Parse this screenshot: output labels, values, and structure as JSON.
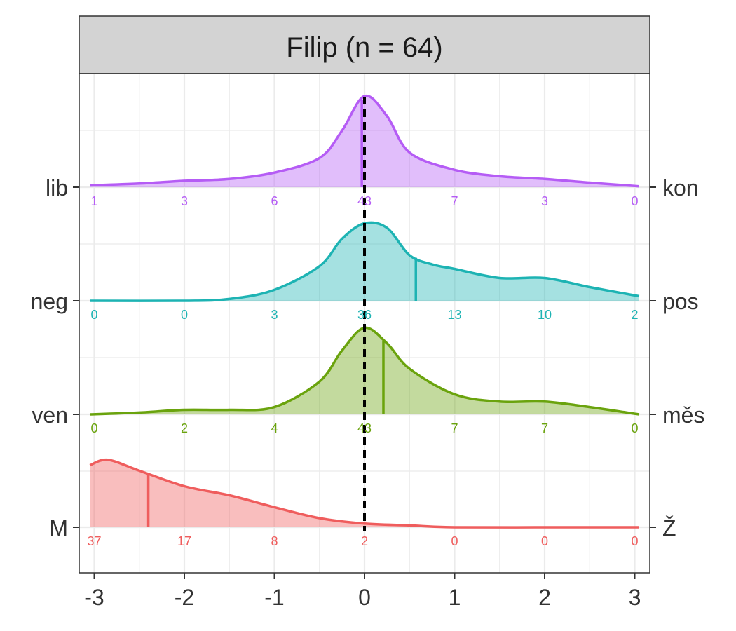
{
  "panel": {
    "title": "Filip (n = 64)"
  },
  "colors": {
    "lib_kon": "#b55cf5",
    "neg_pos": "#1db3b3",
    "ven_mes": "#6aa30d",
    "m_z": "#ef5d5d"
  },
  "chart_data": {
    "type": "ridgeline",
    "title": "Filip (n = 64)",
    "xlabel": "",
    "ylabel": "",
    "xlim": [
      -3.1,
      3.1
    ],
    "x_ticks": [
      -3,
      -2,
      -1,
      0,
      1,
      2,
      3
    ],
    "x_tick_labels": [
      "-3",
      "-2",
      "-1",
      "0",
      "1",
      "2",
      "3"
    ],
    "grid": true,
    "reference_line": {
      "x": 0,
      "style": "dashed"
    },
    "count_positions": [
      -3,
      -2,
      -1,
      0,
      1,
      2,
      3
    ],
    "series": [
      {
        "left_label": "lib",
        "right_label": "kon",
        "color": "#b55cf5",
        "mean": -0.03,
        "counts": [
          1,
          3,
          6,
          43,
          7,
          3,
          0
        ],
        "density": [
          [
            -3.05,
            0.02
          ],
          [
            -2.5,
            0.04
          ],
          [
            -2,
            0.07
          ],
          [
            -1.5,
            0.09
          ],
          [
            -1,
            0.16
          ],
          [
            -0.5,
            0.32
          ],
          [
            -0.25,
            0.62
          ],
          [
            0,
            1.0
          ],
          [
            0.25,
            0.78
          ],
          [
            0.5,
            0.38
          ],
          [
            1,
            0.19
          ],
          [
            1.5,
            0.12
          ],
          [
            2,
            0.09
          ],
          [
            2.5,
            0.05
          ],
          [
            3.05,
            0.01
          ]
        ]
      },
      {
        "left_label": "neg",
        "right_label": "pos",
        "color": "#1db3b3",
        "mean": 0.57,
        "counts": [
          0,
          0,
          3,
          36,
          13,
          10,
          2
        ],
        "density": [
          [
            -3.05,
            0.0
          ],
          [
            -2,
            0.0
          ],
          [
            -1.5,
            0.02
          ],
          [
            -1,
            0.12
          ],
          [
            -0.5,
            0.38
          ],
          [
            -0.25,
            0.68
          ],
          [
            0,
            0.85
          ],
          [
            0.25,
            0.8
          ],
          [
            0.5,
            0.5
          ],
          [
            0.75,
            0.4
          ],
          [
            1,
            0.35
          ],
          [
            1.5,
            0.25
          ],
          [
            2,
            0.25
          ],
          [
            2.5,
            0.15
          ],
          [
            3.05,
            0.05
          ]
        ]
      },
      {
        "left_label": "ven",
        "right_label": "měs",
        "color": "#6aa30d",
        "mean": 0.21,
        "counts": [
          0,
          2,
          4,
          43,
          7,
          7,
          0
        ],
        "density": [
          [
            -3.05,
            0.0
          ],
          [
            -2.5,
            0.02
          ],
          [
            -2,
            0.05
          ],
          [
            -1.5,
            0.05
          ],
          [
            -1,
            0.08
          ],
          [
            -0.5,
            0.36
          ],
          [
            -0.25,
            0.7
          ],
          [
            0,
            0.95
          ],
          [
            0.25,
            0.78
          ],
          [
            0.5,
            0.5
          ],
          [
            1,
            0.22
          ],
          [
            1.5,
            0.14
          ],
          [
            2,
            0.14
          ],
          [
            2.5,
            0.08
          ],
          [
            3.05,
            0.0
          ]
        ]
      },
      {
        "left_label": "M",
        "right_label": "Ž",
        "color": "#ef5d5d",
        "mean": -2.4,
        "counts": [
          37,
          17,
          8,
          2,
          0,
          0,
          0
        ],
        "density": [
          [
            -3.05,
            0.68
          ],
          [
            -2.85,
            0.74
          ],
          [
            -2.5,
            0.62
          ],
          [
            -2,
            0.45
          ],
          [
            -1.5,
            0.35
          ],
          [
            -1,
            0.22
          ],
          [
            -0.5,
            0.1
          ],
          [
            0,
            0.04
          ],
          [
            0.5,
            0.02
          ],
          [
            1,
            0.0
          ],
          [
            2,
            0.0
          ],
          [
            3.05,
            0.0
          ]
        ]
      }
    ]
  }
}
